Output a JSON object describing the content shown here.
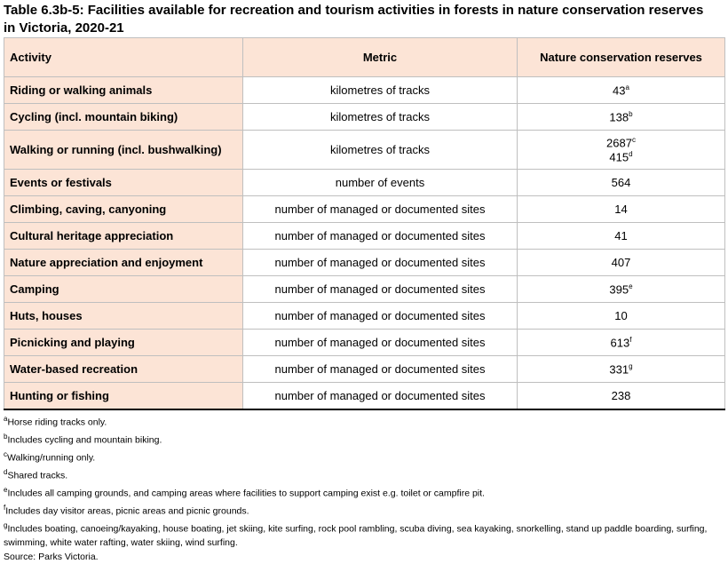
{
  "header": {
    "title": "Table 6.3b-5: Facilities available for recreation and tourism activities in forests in nature conservation reserves in Victoria, 2020-21"
  },
  "table": {
    "columns": [
      "Activity",
      "Metric",
      "Nature conservation reserves"
    ],
    "rows": [
      {
        "activity": "Riding or walking animals",
        "metric": "kilometres of tracks",
        "values": [
          {
            "text": "43",
            "note": "a"
          }
        ]
      },
      {
        "activity": "Cycling (incl. mountain biking)",
        "metric": "kilometres of tracks",
        "values": [
          {
            "text": "138",
            "note": "b"
          }
        ]
      },
      {
        "activity": "Walking or running (incl. bushwalking)",
        "metric": "kilometres of tracks",
        "values": [
          {
            "text": "2687",
            "note": "c"
          },
          {
            "text": "415",
            "note": "d"
          }
        ]
      },
      {
        "activity": "Events or festivals",
        "metric": "number of events",
        "values": [
          {
            "text": "564"
          }
        ]
      },
      {
        "activity": "Climbing, caving, canyoning",
        "metric": "number of managed or documented sites",
        "values": [
          {
            "text": "14"
          }
        ]
      },
      {
        "activity": "Cultural heritage appreciation",
        "metric": "number of managed or documented sites",
        "values": [
          {
            "text": "41"
          }
        ]
      },
      {
        "activity": "Nature appreciation and enjoyment",
        "metric": "number of managed or documented sites",
        "values": [
          {
            "text": "407"
          }
        ]
      },
      {
        "activity": "Camping",
        "metric": "number of managed or documented sites",
        "values": [
          {
            "text": "395",
            "note": "e"
          }
        ]
      },
      {
        "activity": "Huts, houses",
        "metric": "number of managed or documented sites",
        "values": [
          {
            "text": "10"
          }
        ]
      },
      {
        "activity": "Picnicking and playing",
        "metric": "number of managed or documented sites",
        "values": [
          {
            "text": "613",
            "note": "f"
          }
        ]
      },
      {
        "activity": "Water-based recreation",
        "metric": "number of managed or documented sites",
        "values": [
          {
            "text": "331",
            "note": "g"
          }
        ]
      },
      {
        "activity": "Hunting or fishing",
        "metric": "number of managed or documented sites",
        "values": [
          {
            "text": "238"
          }
        ]
      }
    ]
  },
  "footnotes": [
    {
      "mark": "a",
      "text": "Horse riding tracks only."
    },
    {
      "mark": "b",
      "text": "Includes cycling and mountain biking."
    },
    {
      "mark": "c",
      "text": "Walking/running only."
    },
    {
      "mark": "d",
      "text": "Shared tracks."
    },
    {
      "mark": "e",
      "text": "Includes all camping grounds, and camping areas where facilities to support camping exist e.g. toilet or campfire pit."
    },
    {
      "mark": "f",
      "text": "Includes day visitor areas, picnic areas and picnic grounds."
    },
    {
      "mark": "g",
      "text": "Includes boating, canoeing/kayaking, house boating, jet skiing, kite surfing, rock pool rambling, scuba diving, sea kayaking, snorkelling, stand up paddle boarding, surfing, swimming, white water rafting, water skiing, wind surfing."
    }
  ],
  "source": "Source: Parks Victoria."
}
